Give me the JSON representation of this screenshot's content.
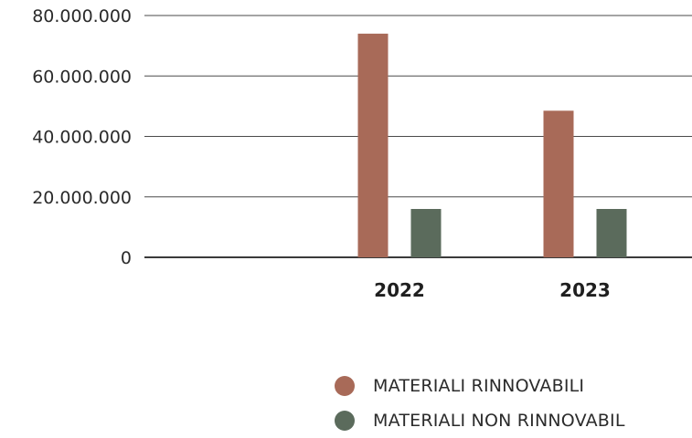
{
  "chart_data": {
    "type": "bar",
    "categories": [
      "",
      "2022",
      "2023"
    ],
    "series": [
      {
        "name": "MATERIALI RINNOVABILI",
        "color": "#a86a58",
        "values": [
          null,
          74000000,
          48500000
        ]
      },
      {
        "name": "MATERIALI NON RINNOVABIL",
        "color": "#5b6b5c",
        "values": [
          null,
          16000000,
          16000000
        ]
      }
    ],
    "y_ticks": [
      0,
      20000000,
      40000000,
      60000000,
      80000000
    ],
    "y_tick_labels": [
      "0",
      "20.000.000",
      "40.000.000",
      "60.000.000",
      "80.000.000"
    ],
    "ylim": [
      0,
      80000000
    ],
    "grid": true,
    "legend_position": "bottom-right",
    "title": "",
    "xlabel": "",
    "ylabel": ""
  }
}
